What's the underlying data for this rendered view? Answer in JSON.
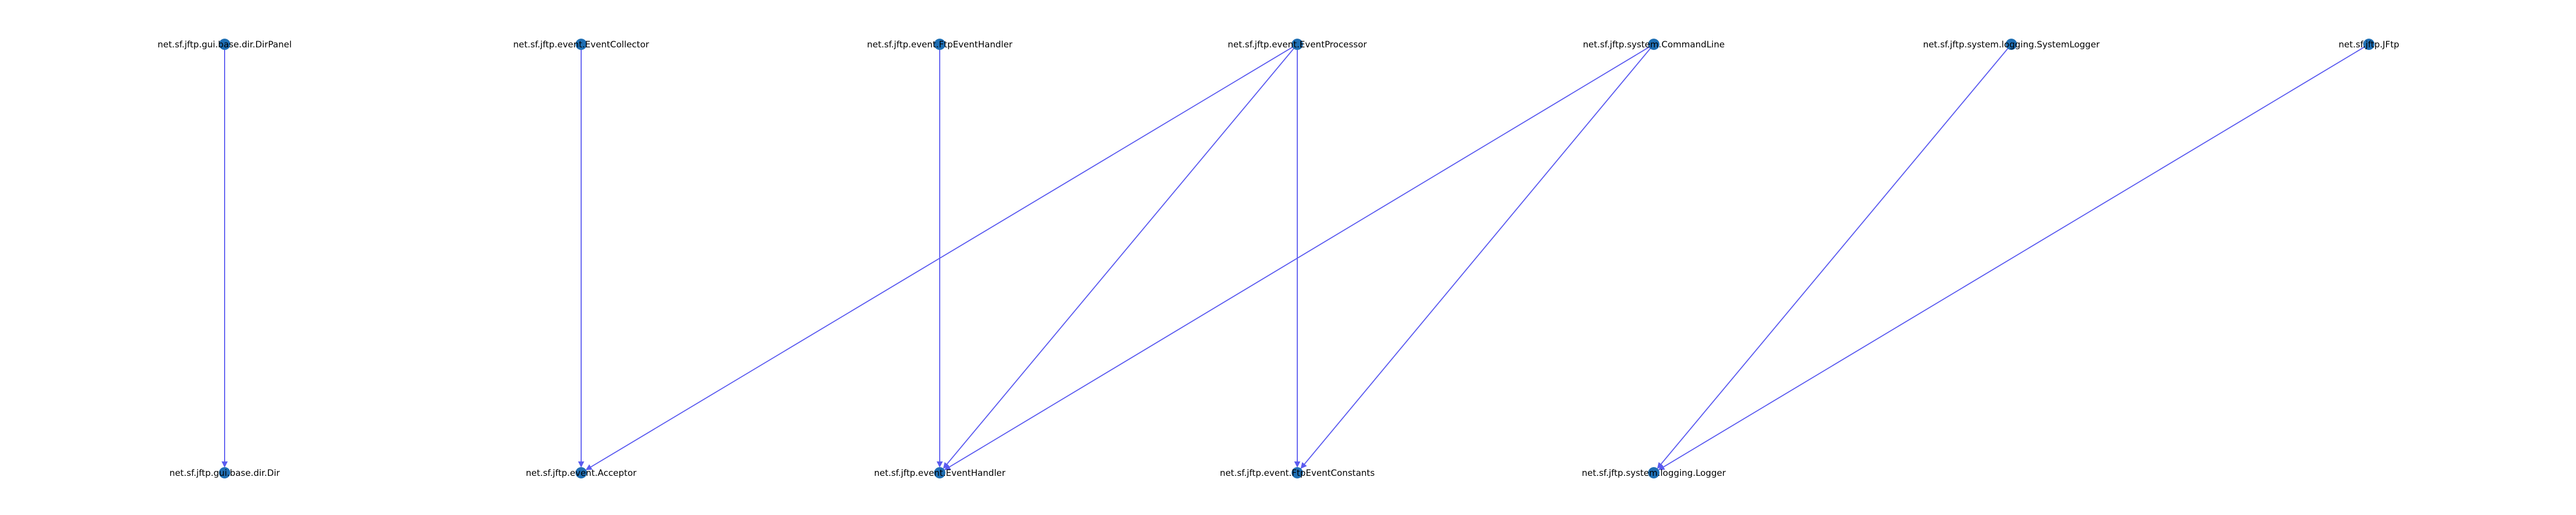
{
  "diagram": {
    "colors": {
      "node": "#1f6fb4",
      "edge": "#5b5bf0",
      "label": "#000000",
      "background": "#ffffff"
    },
    "nodes": [
      {
        "id": "n0",
        "label": "net.sf.jftp.gui.base.dir.DirPanel"
      },
      {
        "id": "n1",
        "label": "net.sf.jftp.event.EventCollector"
      },
      {
        "id": "n2",
        "label": "net.sf.jftp.event.FtpEventHandler"
      },
      {
        "id": "n3",
        "label": "net.sf.jftp.event.EventProcessor"
      },
      {
        "id": "n4",
        "label": "net.sf.jftp.system.CommandLine"
      },
      {
        "id": "n5",
        "label": "net.sf.jftp.system.logging.SystemLogger"
      },
      {
        "id": "n6",
        "label": "net.sf.jftp.JFtp"
      },
      {
        "id": "n7",
        "label": "net.sf.jftp.gui.base.dir.Dir"
      },
      {
        "id": "n8",
        "label": "net.sf.jftp.event.Acceptor"
      },
      {
        "id": "n9",
        "label": "net.sf.jftp.event.EventHandler"
      },
      {
        "id": "n10",
        "label": "net.sf.jftp.event.FtpEventConstants"
      },
      {
        "id": "n11",
        "label": "net.sf.jftp.system.logging.Logger"
      }
    ],
    "edges": [
      {
        "from": "n0",
        "to": "n7"
      },
      {
        "from": "n1",
        "to": "n8"
      },
      {
        "from": "n2",
        "to": "n9"
      },
      {
        "from": "n3",
        "to": "n8"
      },
      {
        "from": "n3",
        "to": "n9"
      },
      {
        "from": "n3",
        "to": "n10"
      },
      {
        "from": "n4",
        "to": "n9"
      },
      {
        "from": "n4",
        "to": "n10"
      },
      {
        "from": "n5",
        "to": "n11"
      },
      {
        "from": "n6",
        "to": "n11"
      }
    ]
  }
}
